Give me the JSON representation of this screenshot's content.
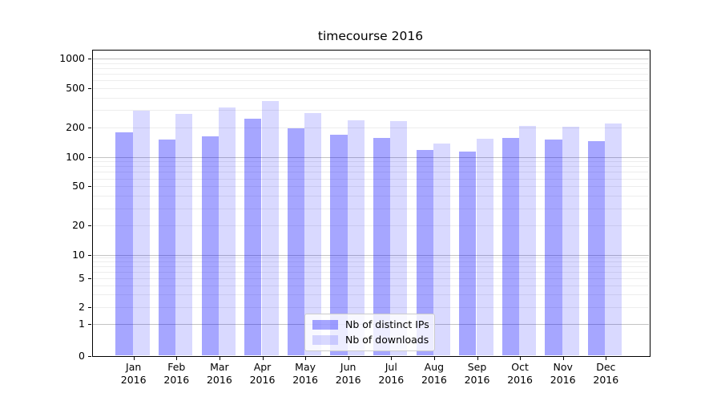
{
  "chart_data": {
    "type": "bar",
    "title": "timecourse 2016",
    "categories": [
      "Jan 2016",
      "Feb 2016",
      "Mar 2016",
      "Apr 2016",
      "May 2016",
      "Jun 2016",
      "Jul 2016",
      "Aug 2016",
      "Sep 2016",
      "Oct 2016",
      "Nov 2016",
      "Dec 2016"
    ],
    "series": [
      {
        "name": "Nb of distinct IPs",
        "color": "rgba(0,0,255,0.35)",
        "values": [
          176,
          149,
          161,
          243,
          195,
          169,
          156,
          117,
          114,
          156,
          149,
          145
        ]
      },
      {
        "name": "Nb of downloads",
        "color": "rgba(0,0,255,0.15)",
        "values": [
          293,
          273,
          318,
          369,
          277,
          234,
          231,
          137,
          153,
          207,
          204,
          217
        ]
      }
    ],
    "xlabel": "",
    "ylabel": "",
    "yscale": "symlog",
    "yticks": [
      0,
      1,
      2,
      5,
      10,
      20,
      50,
      100,
      200,
      500,
      1000
    ],
    "minor_gridline_values": [
      3,
      4,
      6,
      7,
      8,
      9,
      30,
      40,
      60,
      70,
      80,
      90,
      300,
      400,
      600,
      700,
      800,
      900
    ],
    "major_gridline_values": [
      1,
      10,
      100,
      1000
    ],
    "ylim": [
      0,
      1230
    ],
    "grid": true,
    "legend_position": "lower center",
    "colors": {
      "bar_ips_on_white": "#a6a6ff",
      "bar_downloads_on_white": "#d9d9ff",
      "grid_minor": "#ededed",
      "grid_major": "#c4c4c4",
      "axis": "#000000"
    }
  }
}
